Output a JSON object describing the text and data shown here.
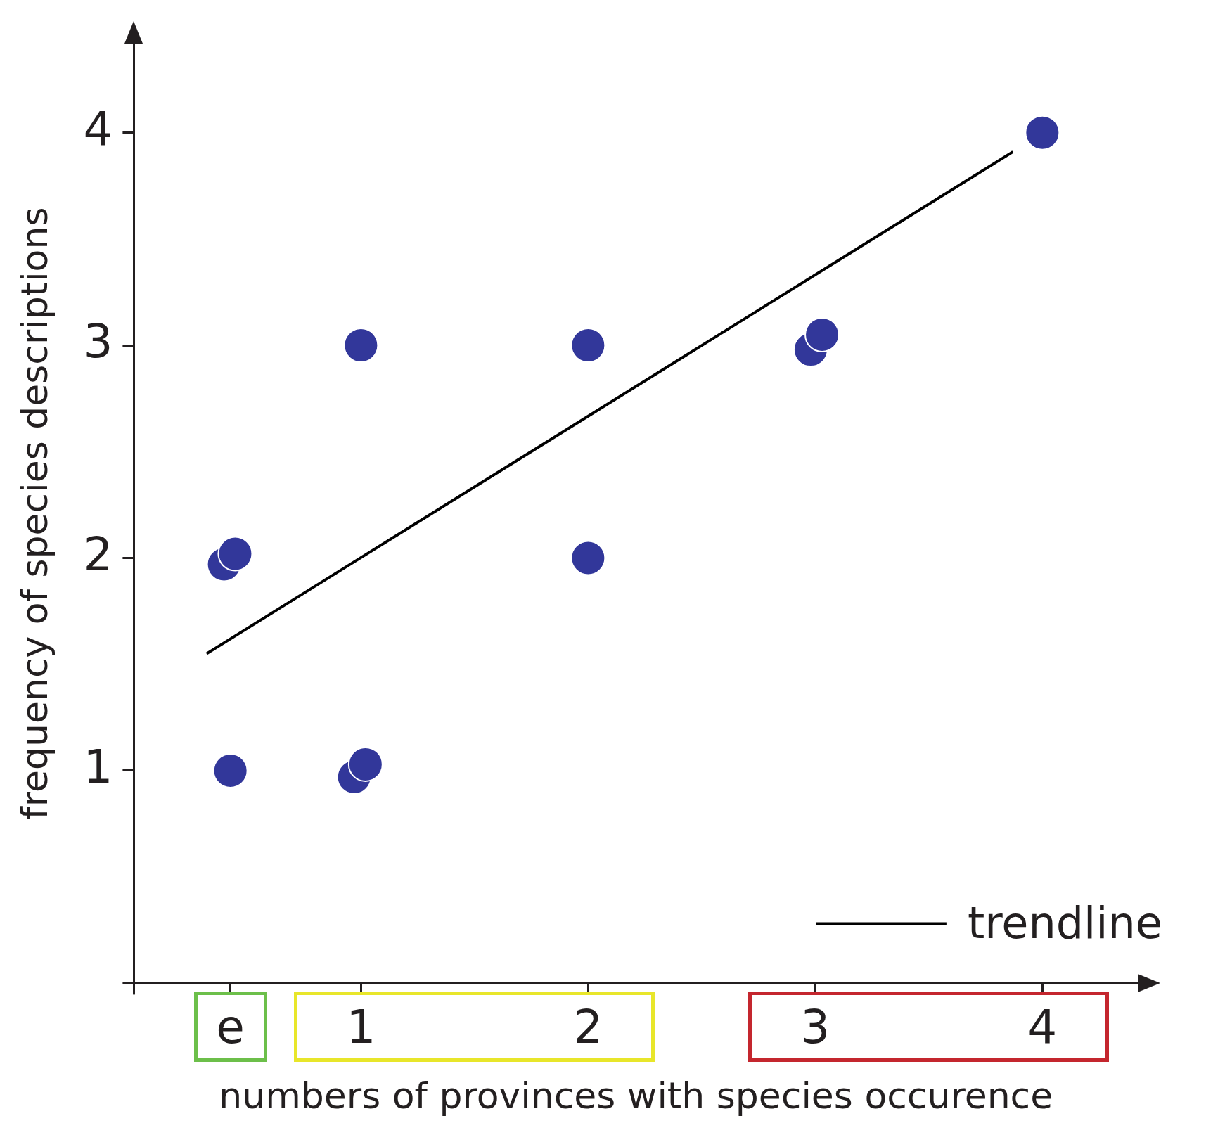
{
  "chart_data": {
    "type": "scatter",
    "xlabel": "numbers of provinces with species occurence",
    "ylabel": "frequency of species descriptions",
    "xlim": [
      0,
      4.42
    ],
    "ylim": [
      0,
      4.42
    ],
    "xticks": [
      {
        "value": 0,
        "label": null
      },
      {
        "value": 0.425,
        "label": "e"
      },
      1,
      2,
      3,
      4
    ],
    "yticks": [
      {
        "value": 0,
        "label": null
      },
      1,
      2,
      3,
      4
    ],
    "grid": false,
    "legend": "bottom right",
    "series": [
      {
        "marker": "circle",
        "color": "#32379a",
        "x": [
          0.397,
          0.446,
          0.425,
          0.97,
          1.02,
          1,
          2,
          2,
          2.98,
          3.03,
          4
        ],
        "values": [
          1.97,
          2.02,
          1,
          0.97,
          1.03,
          3,
          3,
          2,
          2.98,
          3.05,
          4
        ]
      },
      {
        "type": "line",
        "marker": "none",
        "name": "trendline",
        "color": "#000000",
        "x": [
          0.32,
          3.87
        ],
        "values": [
          1.55,
          3.91
        ]
      }
    ]
  }
}
